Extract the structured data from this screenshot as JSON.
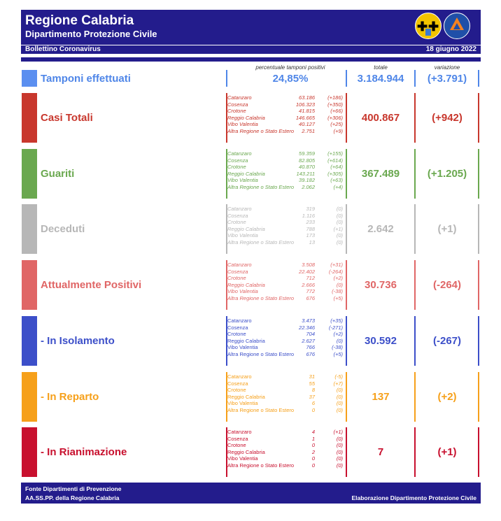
{
  "header": {
    "title": "Regione Calabria",
    "subtitle": "Dipartimento Protezione Civile",
    "band_left": "Bollettino Coronavirus",
    "band_right": "18 giugno 2022"
  },
  "columns": {
    "perc": "percentuale tamponi positivi",
    "totale": "totale",
    "variazione": "variazione"
  },
  "tamponi": {
    "label": "Tamponi effettuati",
    "perc": "24,85%",
    "totale": "3.184.944",
    "variazione": "(+3.791)",
    "color": "#4f86e8"
  },
  "sections": [
    {
      "label": "Casi Totali",
      "totale": "400.867",
      "variazione": "(+942)",
      "color": "#c8372d",
      "rows": [
        {
          "name": "Catanzaro",
          "value": "63.186",
          "delta": "(+186)"
        },
        {
          "name": "Cosenza",
          "value": "106.323",
          "delta": "(+350)"
        },
        {
          "name": "Crotone",
          "value": "41.815",
          "delta": "(+66)"
        },
        {
          "name": "Reggio Calabria",
          "value": "146.665",
          "delta": "(+306)"
        },
        {
          "name": "Vibo Valentia",
          "value": "40.127",
          "delta": "(+25)"
        },
        {
          "name": "Altra Regione o Stato Estero",
          "value": "2.751",
          "delta": "(+9)"
        }
      ]
    },
    {
      "label": "Guariti",
      "totale": "367.489",
      "variazione": "(+1.205)",
      "color": "#6aa84f",
      "rows": [
        {
          "name": "Catanzaro",
          "value": "59.359",
          "delta": "(+155)"
        },
        {
          "name": "Cosenza",
          "value": "82.805",
          "delta": "(+614)"
        },
        {
          "name": "Crotone",
          "value": "40.870",
          "delta": "(+64)"
        },
        {
          "name": "Reggio Calabria",
          "value": "143.211",
          "delta": "(+305)"
        },
        {
          "name": "Vibo Valentia",
          "value": "39.182",
          "delta": "(+63)"
        },
        {
          "name": "Altra Regione o Stato Estero",
          "value": "2.062",
          "delta": "(+4)"
        }
      ]
    },
    {
      "label": "Deceduti",
      "totale": "2.642",
      "variazione": "(+1)",
      "color": "#b7b7b7",
      "rows": [
        {
          "name": "Catanzaro",
          "value": "319",
          "delta": "(0)"
        },
        {
          "name": "Cosenza",
          "value": "1.116",
          "delta": "(0)"
        },
        {
          "name": "Crotone",
          "value": "233",
          "delta": "(0)"
        },
        {
          "name": "Reggio Calabria",
          "value": "788",
          "delta": "(+1)"
        },
        {
          "name": "Vibo Valentia",
          "value": "173",
          "delta": "(0)"
        },
        {
          "name": "Altra Regione o Stato Estero",
          "value": "13",
          "delta": "(0)"
        }
      ]
    },
    {
      "label": "Attualmente Positivi",
      "totale": "30.736",
      "variazione": "(-264)",
      "color": "#e06666",
      "rows": [
        {
          "name": "Catanzaro",
          "value": "3.508",
          "delta": "(+31)"
        },
        {
          "name": "Cosenza",
          "value": "22.402",
          "delta": "(-264)"
        },
        {
          "name": "Crotone",
          "value": "712",
          "delta": "(+2)"
        },
        {
          "name": "Reggio Calabria",
          "value": "2.666",
          "delta": "(0)"
        },
        {
          "name": "Vibo Valentia",
          "value": "772",
          "delta": "(-38)"
        },
        {
          "name": "Altra Regione o Stato Estero",
          "value": "676",
          "delta": "(+5)"
        }
      ]
    },
    {
      "label": "- In Isolamento",
      "totale": "30.592",
      "variazione": "(-267)",
      "color": "#3c4fc9",
      "rows": [
        {
          "name": "Catanzaro",
          "value": "3.473",
          "delta": "(+35)"
        },
        {
          "name": "Cosenza",
          "value": "22.346",
          "delta": "(-271)"
        },
        {
          "name": "Crotone",
          "value": "704",
          "delta": "(+2)"
        },
        {
          "name": "Reggio Calabria",
          "value": "2.627",
          "delta": "(0)"
        },
        {
          "name": "Vibo Valentia",
          "value": "766",
          "delta": "(-38)"
        },
        {
          "name": "Altra Regione o Stato Estero",
          "value": "676",
          "delta": "(+5)"
        }
      ]
    },
    {
      "label": "- In Reparto",
      "totale": "137",
      "variazione": "(+2)",
      "color": "#f6a01a",
      "rows": [
        {
          "name": "Catanzaro",
          "value": "31",
          "delta": "(-5)"
        },
        {
          "name": "Cosenza",
          "value": "55",
          "delta": "(+7)"
        },
        {
          "name": "Crotone",
          "value": "8",
          "delta": "(0)"
        },
        {
          "name": "Reggio Calabria",
          "value": "37",
          "delta": "(0)"
        },
        {
          "name": "Vibo Valentia",
          "value": "6",
          "delta": "(0)"
        },
        {
          "name": "Altra Regione o Stato Estero",
          "value": "0",
          "delta": "(0)"
        }
      ]
    },
    {
      "label": "- In Rianimazione",
      "totale": "7",
      "variazione": "(+1)",
      "color": "#c8102e",
      "rows": [
        {
          "name": "Catanzaro",
          "value": "4",
          "delta": "(+1)"
        },
        {
          "name": "Cosenza",
          "value": "1",
          "delta": "(0)"
        },
        {
          "name": "Crotone",
          "value": "0",
          "delta": "(0)"
        },
        {
          "name": "Reggio Calabria",
          "value": "2",
          "delta": "(0)"
        },
        {
          "name": "Vibo Valentia",
          "value": "0",
          "delta": "(0)"
        },
        {
          "name": "Altra Regione o Stato Estero",
          "value": "0",
          "delta": "(0)"
        }
      ]
    }
  ],
  "footer": {
    "line1": "Fonte Dipartimenti di Prevenzione",
    "line2": "AA.SS.PP.  della Regione Calabria",
    "right": "Elaborazione Dipartimento Protezione Civile"
  }
}
